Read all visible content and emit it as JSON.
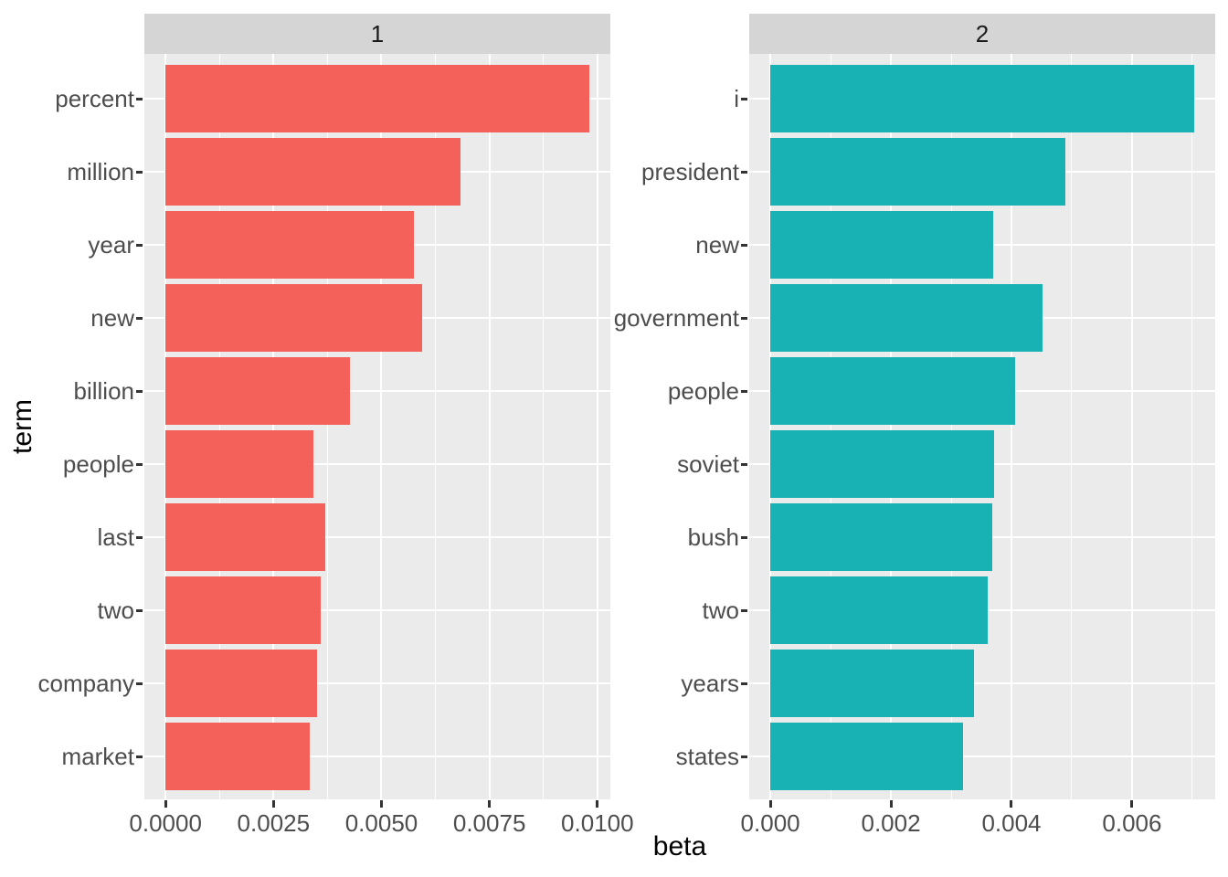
{
  "figure": {
    "xlabel": "beta",
    "ylabel": "term",
    "background": "#FFFFFF",
    "panel_background": "#EBEBEB",
    "strip_background": "#D5D5D5",
    "gridline_color": "#FFFFFF",
    "axis_text_color": "#4D4D4D",
    "strip_text_color": "#1A1A1A",
    "tick_mark_color": "#333333"
  },
  "chart_data": [
    {
      "type": "bar",
      "orientation": "horizontal",
      "facet": "1",
      "bar_color": "#F4605A",
      "categories": [
        "percent",
        "million",
        "year",
        "new",
        "billion",
        "people",
        "last",
        "two",
        "company",
        "market"
      ],
      "values": [
        0.00981,
        0.00684,
        0.00576,
        0.00595,
        0.00426,
        0.00343,
        0.00369,
        0.0036,
        0.0035,
        0.00333
      ],
      "xlim": [
        -0.00049,
        0.0103
      ],
      "x_major_ticks": [
        0,
        0.0025,
        0.005,
        0.0075,
        0.01
      ],
      "x_tick_labels": [
        "0.0000",
        "0.0025",
        "0.0050",
        "0.0075",
        "0.0100"
      ],
      "x_minor_ticks": [
        0.00125,
        0.00375,
        0.00625,
        0.00875
      ],
      "xlabel": "beta",
      "ylabel": "term",
      "grid": true,
      "legend": "none"
    },
    {
      "type": "bar",
      "orientation": "horizontal",
      "facet": "2",
      "bar_color": "#18B2B4",
      "categories": [
        "i",
        "president",
        "new",
        "government",
        "people",
        "soviet",
        "bush",
        "two",
        "years",
        "states"
      ],
      "values": [
        0.00703,
        0.00489,
        0.0037,
        0.00452,
        0.00406,
        0.00371,
        0.00368,
        0.00361,
        0.00338,
        0.00319
      ],
      "xlim": [
        -0.00035,
        0.00738
      ],
      "x_major_ticks": [
        0,
        0.002,
        0.004,
        0.006
      ],
      "x_tick_labels": [
        "0.000",
        "0.002",
        "0.004",
        "0.006"
      ],
      "x_minor_ticks": [
        0.001,
        0.003,
        0.005,
        0.007
      ],
      "xlabel": "beta",
      "ylabel": "term",
      "grid": true,
      "legend": "none"
    }
  ]
}
